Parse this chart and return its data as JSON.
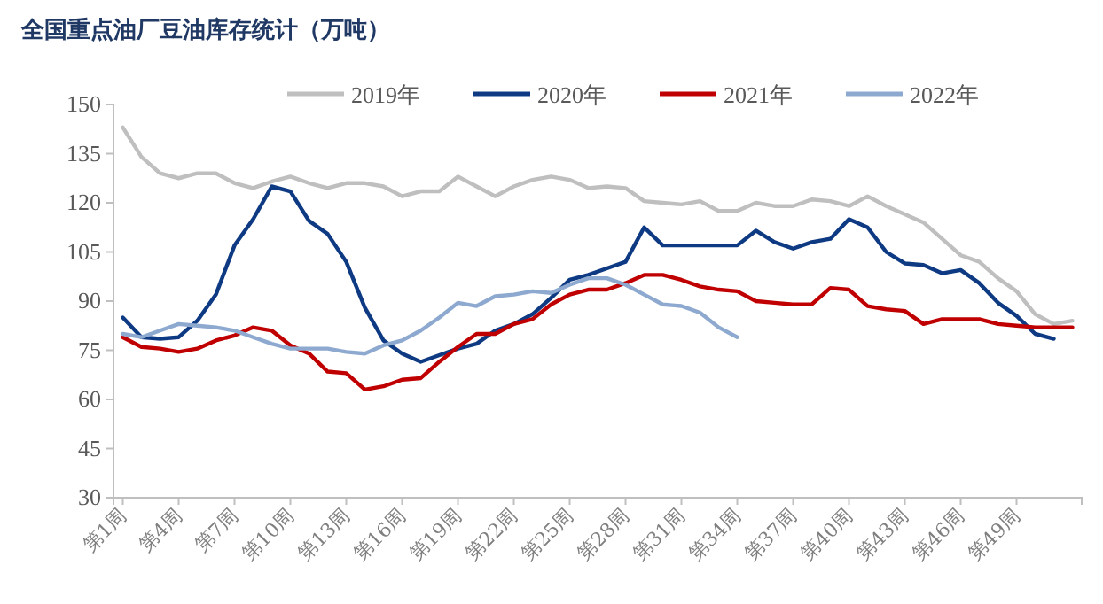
{
  "chart_data": {
    "type": "line",
    "title": "全国重点油厂豆油库存统计（万吨）",
    "categories": [
      "第1周",
      null,
      null,
      "第4周",
      null,
      null,
      "第7周",
      null,
      null,
      "第10周",
      null,
      null,
      "第13周",
      null,
      null,
      "第16周",
      null,
      null,
      "第19周",
      null,
      null,
      "第22周",
      null,
      null,
      "第25周",
      null,
      null,
      "第28周",
      null,
      null,
      "第31周",
      null,
      null,
      "第34周",
      null,
      null,
      "第37周",
      null,
      null,
      "第40周",
      null,
      null,
      "第43周",
      null,
      null,
      "第46周",
      null,
      null,
      "第49周",
      null,
      null,
      null
    ],
    "series": [
      {
        "name": "2019年",
        "color": "#bfbfbf",
        "values": [
          143,
          134,
          129,
          127.5,
          129,
          129,
          126,
          124.5,
          126.5,
          128,
          126,
          124.5,
          126,
          126,
          125,
          122,
          123.5,
          123.5,
          128,
          125,
          122,
          125,
          127,
          128,
          127,
          124.5,
          125,
          124.5,
          120.5,
          120,
          119.5,
          120.5,
          117.5,
          117.5,
          120,
          119,
          119,
          121,
          120.5,
          119,
          122,
          119,
          116.5,
          114,
          109,
          104,
          102,
          97,
          93,
          86,
          83,
          84
        ]
      },
      {
        "name": "2020年",
        "color": "#0e3a83",
        "values": [
          85,
          79,
          78.5,
          79,
          84,
          92,
          107,
          115,
          125,
          123.5,
          114.5,
          110.5,
          102,
          88,
          78,
          74,
          71.5,
          73.5,
          75.5,
          77,
          81,
          83,
          86,
          91,
          96.5,
          98,
          100,
          102,
          112.5,
          107,
          107,
          107,
          107,
          107,
          111.5,
          108,
          106,
          108,
          109,
          115,
          112.5,
          105,
          101.5,
          101,
          98.5,
          99.5,
          95.5,
          89.5,
          85.5,
          80,
          78.5,
          null
        ]
      },
      {
        "name": "2021年",
        "color": "#c00000",
        "values": [
          79,
          76,
          75.5,
          74.5,
          75.5,
          78,
          79.5,
          82,
          81,
          76.5,
          74,
          68.5,
          68,
          63,
          64,
          66,
          66.5,
          71.5,
          76,
          80,
          80,
          83,
          84.5,
          89,
          92,
          93.5,
          93.5,
          95.5,
          98,
          98,
          96.5,
          94.5,
          93.5,
          93,
          90,
          89.5,
          89,
          89,
          94,
          93.5,
          88.5,
          87.5,
          87,
          83,
          84.5,
          84.5,
          84.5,
          83,
          82.5,
          82,
          82,
          82
        ]
      },
      {
        "name": "2022年",
        "color": "#8ea9d0",
        "values": [
          80,
          79,
          81,
          83,
          82.5,
          82,
          81,
          79,
          77,
          75.5,
          75.5,
          75.5,
          74.5,
          74,
          76.5,
          78,
          81,
          85,
          89.5,
          88.5,
          91.5,
          92,
          93,
          92.5,
          95,
          97,
          97,
          95,
          92,
          89,
          88.5,
          86.5,
          82,
          79,
          null,
          null,
          null,
          null,
          null,
          null,
          null,
          null,
          null,
          null,
          null,
          null,
          null,
          null,
          null,
          null,
          null,
          null
        ]
      }
    ],
    "ylim": [
      30,
      150
    ],
    "yticks": [
      30,
      45,
      60,
      75,
      90,
      105,
      120,
      135,
      150
    ],
    "grid": false,
    "legend": "top",
    "line_style": "solid",
    "marker": "none"
  }
}
